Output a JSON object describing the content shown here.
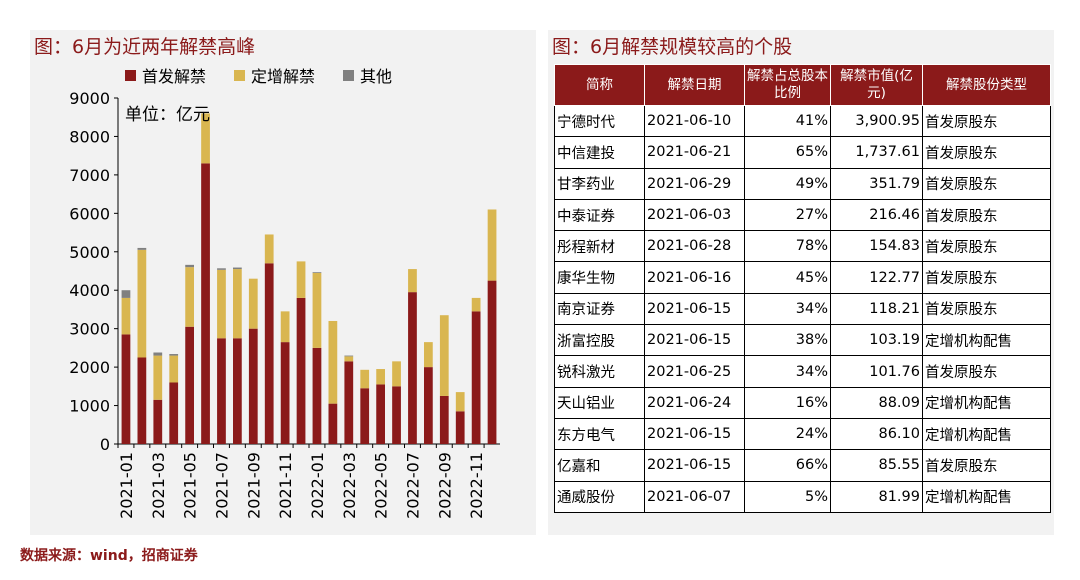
{
  "left": {
    "title": "图：6月为近两年解禁高峰",
    "unit": "单位：亿元"
  },
  "chart_data": {
    "type": "bar",
    "stacked": true,
    "categories": [
      "2021-01",
      "2021-02",
      "2021-03",
      "2021-04",
      "2021-05",
      "2021-06",
      "2021-07",
      "2021-08",
      "2021-09",
      "2021-10",
      "2021-11",
      "2021-12",
      "2022-01",
      "2022-02",
      "2022-03",
      "2022-04",
      "2022-05",
      "2022-06",
      "2022-07",
      "2022-08",
      "2022-09",
      "2022-10",
      "2022-11",
      "2022-12"
    ],
    "xtick_labels": [
      "2021-01",
      "2021-03",
      "2021-05",
      "2021-07",
      "2021-09",
      "2021-11",
      "2022-01",
      "2022-03",
      "2022-05",
      "2022-07",
      "2022-09",
      "2022-11"
    ],
    "series": [
      {
        "name": "首发解禁",
        "color": "#8b1a1a",
        "values": [
          2850,
          2250,
          1150,
          1600,
          3050,
          7300,
          2750,
          2750,
          3000,
          4700,
          2650,
          3800,
          2500,
          1050,
          2150,
          1450,
          1550,
          1500,
          3950,
          2000,
          1250,
          850,
          3450,
          4250
        ]
      },
      {
        "name": "定增解禁",
        "color": "#d9b650",
        "values": [
          950,
          2800,
          1150,
          700,
          1550,
          1300,
          1780,
          1800,
          1300,
          750,
          800,
          950,
          1950,
          2150,
          130,
          480,
          400,
          650,
          600,
          650,
          2100,
          500,
          350,
          1850
        ]
      },
      {
        "name": "其他",
        "color": "#808080",
        "values": [
          200,
          50,
          80,
          40,
          60,
          0,
          40,
          40,
          0,
          0,
          0,
          0,
          20,
          0,
          20,
          0,
          0,
          0,
          0,
          0,
          0,
          0,
          0,
          0
        ]
      }
    ],
    "ylim": [
      0,
      9000
    ],
    "yticks": [
      0,
      1000,
      2000,
      3000,
      4000,
      5000,
      6000,
      7000,
      8000,
      9000
    ],
    "legend_position": "top",
    "grid": false
  },
  "right": {
    "title": "图：6月解禁规模较高的个股",
    "headers": [
      "简称",
      "解禁日期",
      "解禁占总股本比例",
      "解禁市值(亿元)",
      "解禁股份类型"
    ],
    "rows": [
      [
        "宁德时代",
        "2021-06-10",
        "41%",
        "3,900.95",
        "首发原股东"
      ],
      [
        "中信建投",
        "2021-06-21",
        "65%",
        "1,737.61",
        "首发原股东"
      ],
      [
        "甘李药业",
        "2021-06-29",
        "49%",
        "351.79",
        "首发原股东"
      ],
      [
        "中泰证券",
        "2021-06-03",
        "27%",
        "216.46",
        "首发原股东"
      ],
      [
        "彤程新材",
        "2021-06-28",
        "78%",
        "154.83",
        "首发原股东"
      ],
      [
        "康华生物",
        "2021-06-16",
        "45%",
        "122.77",
        "首发原股东"
      ],
      [
        "南京证券",
        "2021-06-15",
        "34%",
        "118.21",
        "首发原股东"
      ],
      [
        "浙富控股",
        "2021-06-15",
        "38%",
        "103.19",
        "定增机构配售"
      ],
      [
        "锐科激光",
        "2021-06-25",
        "34%",
        "101.76",
        "首发原股东"
      ],
      [
        "天山铝业",
        "2021-06-24",
        "16%",
        "88.09",
        "定增机构配售"
      ],
      [
        "东方电气",
        "2021-06-15",
        "24%",
        "86.10",
        "定增机构配售"
      ],
      [
        "亿嘉和",
        "2021-06-15",
        "66%",
        "85.55",
        "首发原股东"
      ],
      [
        "通威股份",
        "2021-06-07",
        "5%",
        "81.99",
        "定增机构配售"
      ]
    ]
  },
  "source": "数据来源：wind，招商证券"
}
